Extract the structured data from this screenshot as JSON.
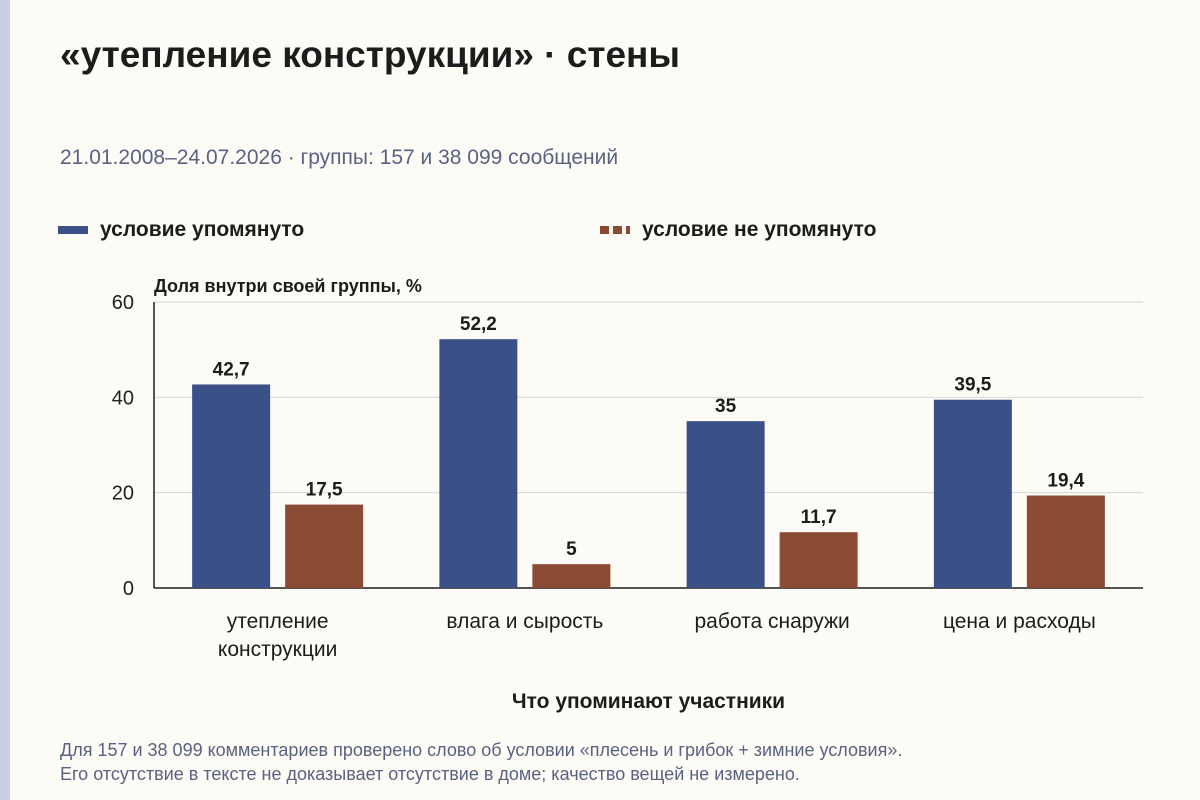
{
  "title": "«утепление конструкции» · стены",
  "subtitle": "21.01.2008–24.07.2026 · группы: 157 и 38 099 сообщений",
  "legend": {
    "mentioned": "условие упомянуто",
    "not_mentioned": "условие не упомянуто"
  },
  "colors": {
    "mentioned": "#3c5088",
    "not_mentioned": "#8b4a33",
    "grid": "#d6d6d6",
    "axis": "#1c1c1c"
  },
  "chart_data": {
    "type": "bar",
    "ylabel": "Доля внутри своей группы, %",
    "xlabel": "Что упоминают участники",
    "ylim": [
      0,
      60
    ],
    "yticks": [
      0,
      20,
      40,
      60
    ],
    "grid": true,
    "legend_placement": "top",
    "categories": [
      [
        "утепление",
        "конструкции"
      ],
      [
        "влага и сырость"
      ],
      [
        "работа снаружи"
      ],
      [
        "цена и расходы"
      ]
    ],
    "series": [
      {
        "name": "условие упомянуто",
        "values": [
          42.7,
          52.2,
          35,
          39.5
        ],
        "labels": [
          "42,7",
          "52,2",
          "35",
          "39,5"
        ]
      },
      {
        "name": "условие не упомянуто",
        "values": [
          17.5,
          5,
          11.7,
          19.4
        ],
        "labels": [
          "17,5",
          "5",
          "11,7",
          "19,4"
        ]
      }
    ]
  },
  "note": {
    "line1": "Для 157 и 38 099 комментариев проверено слово об условии «плесень и грибок + зимние условия».",
    "line2": "Его отсутствие в тексте не доказывает отсутствие в доме; качество вещей не измерено."
  }
}
